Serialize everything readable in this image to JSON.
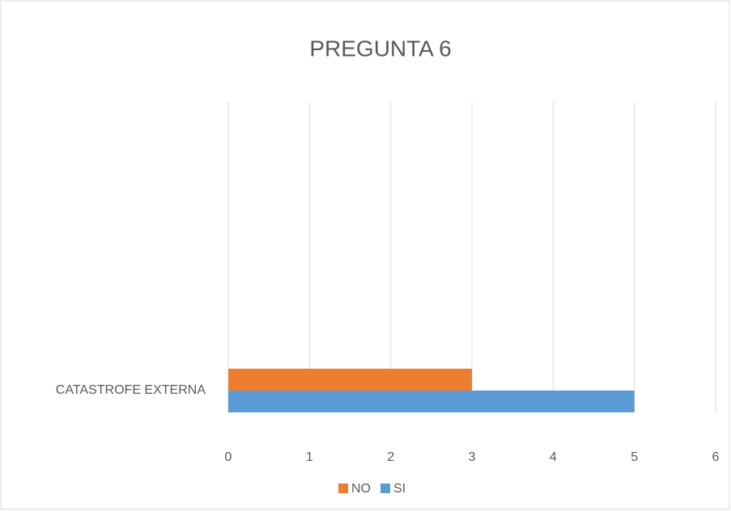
{
  "chart_data": {
    "type": "hbar",
    "title": "PREGUNTA 6",
    "categories": [
      "CATASTROFE EXTERNA"
    ],
    "series": [
      {
        "name": "NO",
        "color": "#ed7d31",
        "values": [
          3
        ]
      },
      {
        "name": "SI",
        "color": "#5b9bd5",
        "values": [
          5
        ]
      }
    ],
    "xlim": [
      0,
      6
    ],
    "xticks": [
      0,
      1,
      2,
      3,
      4,
      5,
      6
    ],
    "grid": true,
    "legend": "bottom"
  }
}
